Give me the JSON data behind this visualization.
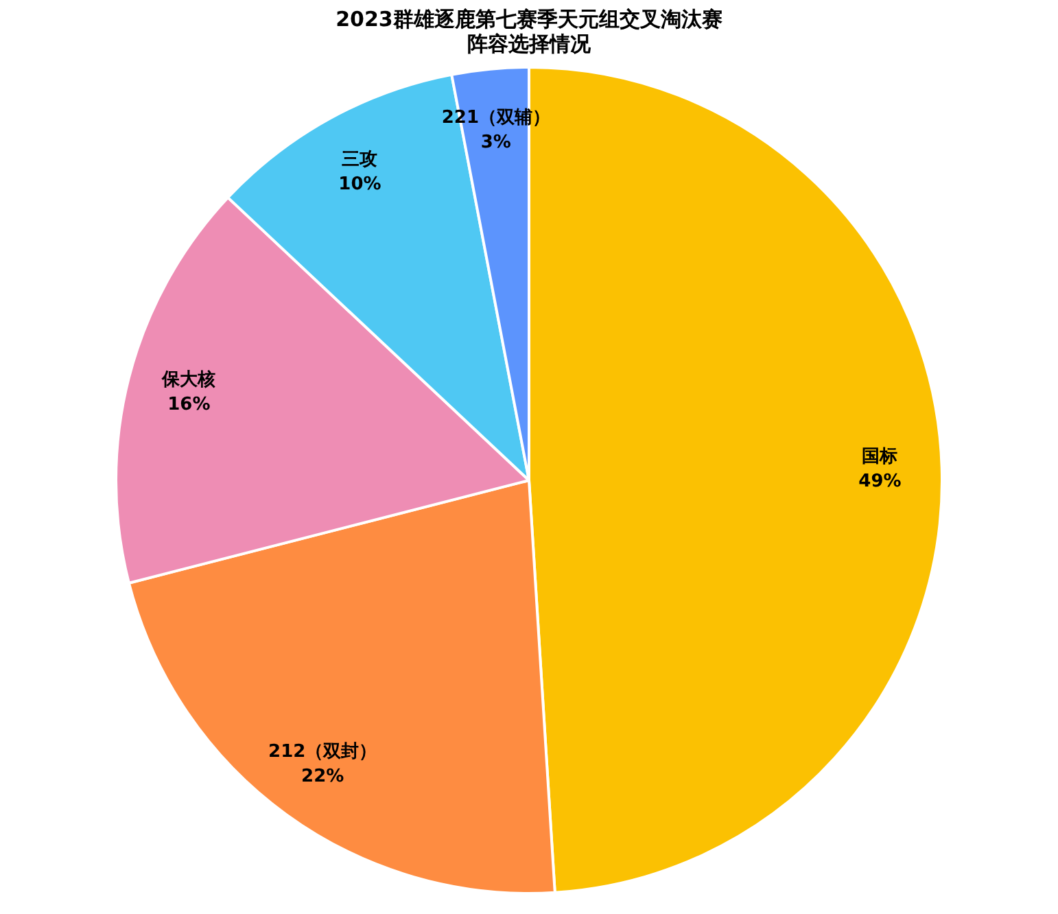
{
  "chart_data": {
    "type": "pie",
    "title": [
      "2023群雄逐鹿第七赛季天元组交叉淘汰赛",
      "阵容选择情况"
    ],
    "categories": [
      "国标",
      "212（双封）",
      "保大核",
      "三攻",
      "221（双辅）"
    ],
    "values": [
      49,
      22,
      16,
      10,
      3
    ],
    "value_labels": [
      "49%",
      "22%",
      "16%",
      "10%",
      "3%"
    ],
    "colors": [
      "#fbc102",
      "#fe8c41",
      "#ee8db4",
      "#4fc8f3",
      "#5c94fd"
    ],
    "legend": false
  }
}
